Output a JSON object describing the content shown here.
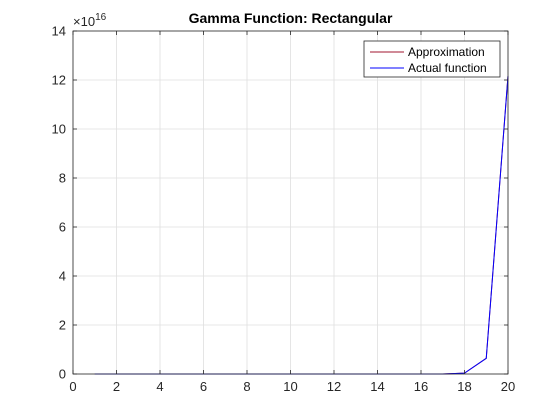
{
  "chart_data": {
    "type": "line",
    "title": "Gamma Function: Rectangular",
    "xlabel": "",
    "ylabel": "",
    "xlim": [
      0,
      20
    ],
    "ylim": [
      0,
      14
    ],
    "y_multiplier": "×10",
    "y_exponent": "16",
    "xticks": [
      "0",
      "2",
      "4",
      "6",
      "8",
      "10",
      "12",
      "14",
      "16",
      "18",
      "20"
    ],
    "yticks": [
      "0",
      "2",
      "4",
      "6",
      "8",
      "10",
      "12",
      "14"
    ],
    "grid": true,
    "legend_position": "top-right",
    "x": [
      1,
      2,
      3,
      4,
      5,
      6,
      7,
      8,
      9,
      10,
      11,
      12,
      13,
      14,
      15,
      16,
      17,
      18,
      19,
      20
    ],
    "series": [
      {
        "name": "Approximation",
        "color": "#a2142f",
        "values": [
          0,
          0,
          0,
          0,
          0,
          0,
          0,
          0,
          0,
          0,
          0,
          0,
          0,
          0,
          0,
          0,
          0.0021,
          0.0356,
          0.64,
          12.16
        ]
      },
      {
        "name": "Actual function",
        "color": "#0000ff",
        "values": [
          0,
          0,
          0,
          0,
          0,
          0,
          0,
          0,
          0,
          0,
          0,
          0,
          0,
          0,
          0,
          0,
          0.0021,
          0.0356,
          0.64,
          12.16
        ]
      }
    ]
  }
}
